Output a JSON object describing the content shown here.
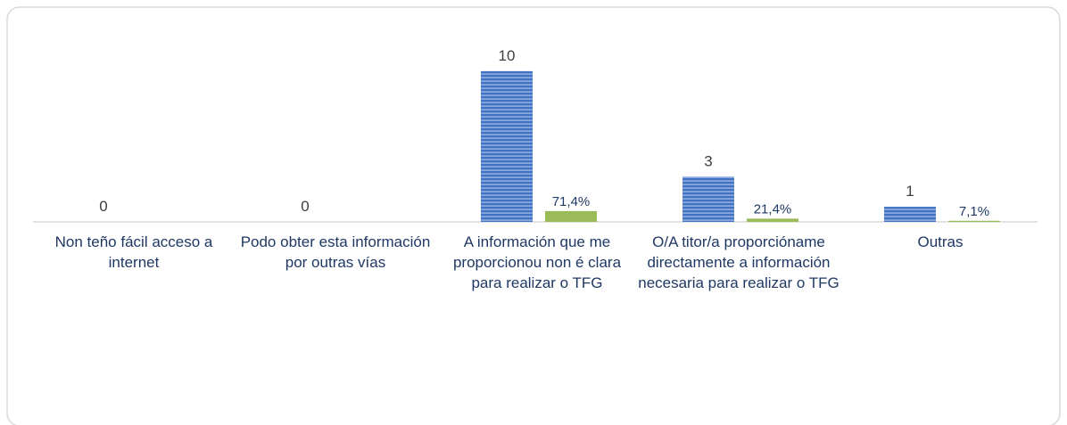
{
  "chart_data": {
    "type": "bar",
    "categories": [
      "Non teño fácil acceso a internet",
      "Podo obter esta información por outras vías",
      "A información que me proporcionou non é clara para realizar o TFG",
      "O/A titor/a proporcióname directamente a información necesaria para realizar o TFG",
      "Outras"
    ],
    "series": [
      {
        "color": "#4472c4",
        "values": [
          0,
          0,
          10,
          3,
          1
        ]
      },
      {
        "color": "#9bbb59",
        "values": [
          null,
          null,
          0.714,
          0.214,
          0.071
        ],
        "value_labels": [
          null,
          null,
          "71,4%",
          "21,4%",
          "7,1%"
        ]
      }
    ],
    "ylim": [
      0,
      12
    ]
  }
}
